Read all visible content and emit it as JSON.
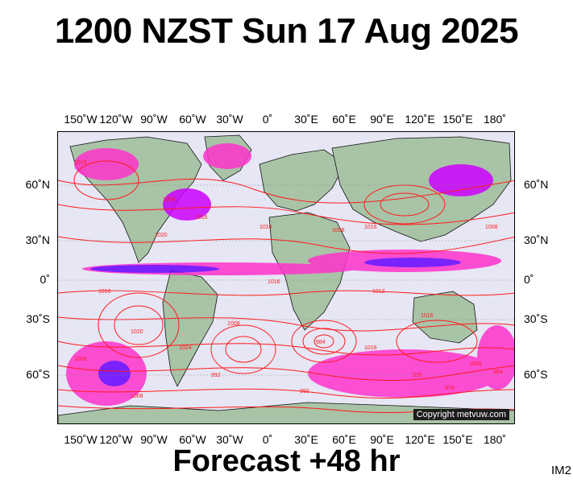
{
  "title": "1200 NZST Sun 17 Aug 2025",
  "footer": "Forecast +48 hr",
  "image_tag": "IM2",
  "copyright": "Copyright metvuw.com",
  "lon_labels": [
    "150˚W",
    "120˚W",
    "90˚W",
    "60˚W",
    "30˚W",
    "0˚",
    "30˚E",
    "60˚E",
    "90˚E",
    "120˚E",
    "150˚E",
    "180˚"
  ],
  "lat_labels": [
    "60˚N",
    "30˚N",
    "0˚",
    "30˚S",
    "60˚S"
  ],
  "pressure_labels": [
    "1016",
    "1008",
    "1016",
    "1020",
    "1016",
    "1008",
    "1016",
    "1016",
    "1012",
    "1008",
    "1016",
    "1024",
    "1020",
    "984",
    "976",
    "992",
    "1000",
    "992",
    "1008",
    "1016",
    "1000",
    "1008",
    "984",
    "976",
    "1016"
  ],
  "colors": {
    "ocean": "#e6e6f4",
    "land": "#a9c3a7",
    "isobar": "#ff1a1a",
    "rain_light": "#ff33cc",
    "rain_heavy": "#6600ff",
    "rain_med": "#cc00ff"
  }
}
